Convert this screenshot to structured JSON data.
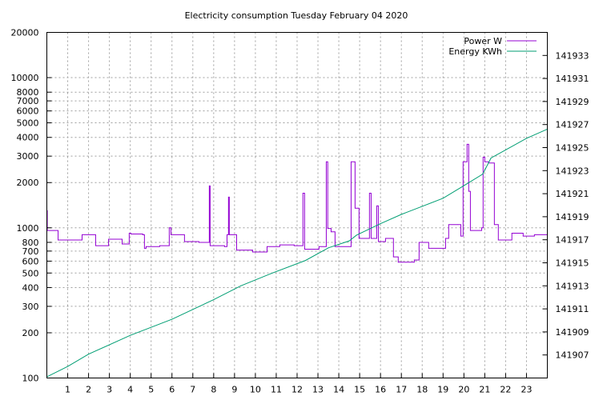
{
  "chart_data": {
    "type": "line",
    "title": "Electricity consumption Tuesday February 04 2020",
    "xlabel": "",
    "ylabel": "",
    "y2label": "",
    "xlim": [
      0,
      24
    ],
    "ylim": [
      100,
      20000
    ],
    "yscale": "log",
    "y2lim": [
      141905,
      141935
    ],
    "grid": true,
    "legend": "top-right",
    "x_ticks": [
      "1",
      "2",
      "3",
      "4",
      "5",
      "6",
      "7",
      "8",
      "9",
      "10",
      "11",
      "12",
      "13",
      "14",
      "15",
      "16",
      "17",
      "18",
      "19",
      "20",
      "21",
      "22",
      "23"
    ],
    "y_ticks": [
      100,
      200,
      300,
      400,
      500,
      600,
      700,
      800,
      1000,
      2000,
      3000,
      4000,
      5000,
      6000,
      7000,
      8000,
      10000,
      20000
    ],
    "y2_ticks": [
      141907,
      141909,
      141911,
      141913,
      141915,
      141917,
      141919,
      141921,
      141923,
      141925,
      141927,
      141929,
      141931,
      141933
    ],
    "series": [
      {
        "name": "Power W",
        "color": "#9400d3",
        "step": true,
        "x": [
          0,
          0.02,
          0.54,
          1.69,
          2.34,
          2.96,
          3.61,
          3.95,
          4.03,
          4.6,
          4.68,
          4.76,
          5.41,
          5.87,
          5.95,
          6.6,
          7.29,
          7.79,
          7.83,
          8.52,
          8.64,
          8.71,
          8.75,
          9.1,
          9.87,
          10.56,
          11.17,
          11.86,
          12.28,
          12.36,
          12.44,
          13.05,
          13.4,
          13.47,
          13.63,
          13.82,
          14.59,
          14.78,
          14.97,
          15.47,
          15.55,
          15.82,
          15.9,
          16.24,
          16.62,
          16.85,
          17.62,
          17.85,
          18.31,
          19.08,
          19.12,
          19.27,
          19.69,
          19.85,
          19.96,
          20.15,
          20.23,
          20.31,
          20.85,
          20.92,
          21.0,
          21.19,
          21.46,
          21.65,
          21.73,
          22.3,
          22.84,
          23.38,
          24
        ],
        "y": [
          1300,
          960,
          830,
          900,
          760,
          840,
          780,
          920,
          910,
          900,
          730,
          750,
          760,
          1000,
          900,
          810,
          800,
          1900,
          760,
          750,
          900,
          1600,
          900,
          710,
          690,
          750,
          770,
          760,
          1700,
          720,
          720,
          750,
          2750,
          990,
          940,
          750,
          2750,
          1350,
          850,
          1700,
          850,
          1400,
          810,
          850,
          640,
          590,
          610,
          800,
          730,
          730,
          850,
          1050,
          1050,
          880,
          2750,
          3600,
          1750,
          960,
          1000,
          2950,
          2750,
          2700,
          1050,
          830,
          830,
          920,
          880,
          900,
          900
        ]
      },
      {
        "name": "Energy KWh",
        "color": "#009e73",
        "step": false,
        "x": [
          0,
          1,
          2,
          4,
          6,
          8,
          9.3,
          10.8,
          12.4,
          13.5,
          14.5,
          14.85,
          16,
          17,
          18,
          19,
          20,
          20.9,
          21.3,
          22,
          23,
          24
        ],
        "y": [
          141905.1,
          141906.0,
          141907.07,
          141908.7,
          141910.1,
          141911.8,
          141913.0,
          141914.1,
          141915.2,
          141916.3,
          141916.9,
          141917.4,
          141918.4,
          141919.2,
          141919.9,
          141920.6,
          141921.7,
          141922.7,
          141924.1,
          141924.8,
          141925.8,
          141926.6
        ]
      }
    ]
  }
}
